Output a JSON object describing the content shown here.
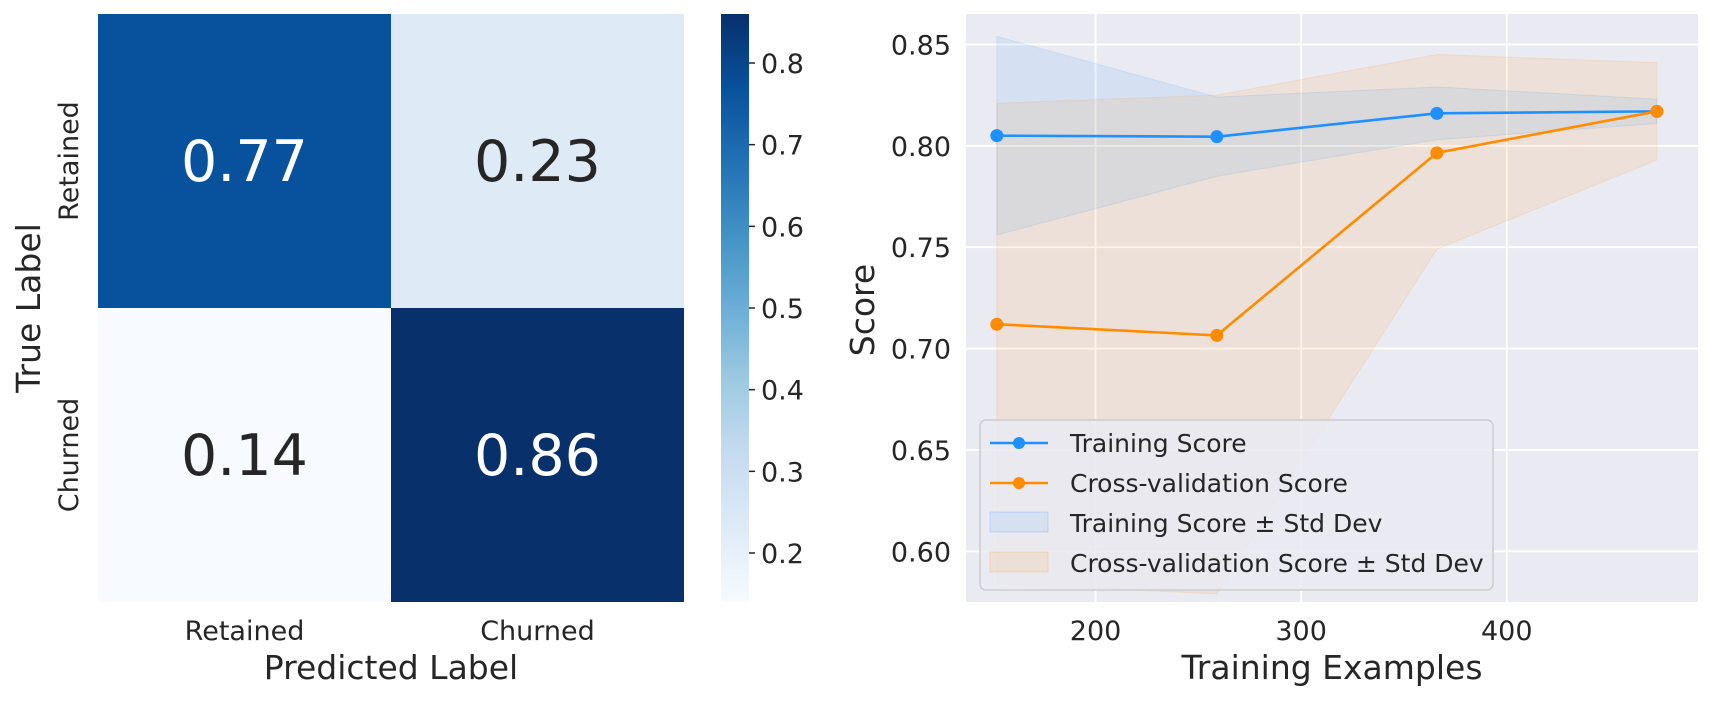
{
  "chart_data": [
    {
      "type": "heatmap",
      "xlabel": "Predicted Label",
      "ylabel": "True Label",
      "x_categories": [
        "Retained",
        "Churned"
      ],
      "y_categories": [
        "Retained",
        "Churned"
      ],
      "values": [
        [
          0.77,
          0.23
        ],
        [
          0.14,
          0.86
        ]
      ],
      "value_labels": [
        [
          "0.77",
          "0.23"
        ],
        [
          "0.14",
          "0.86"
        ]
      ],
      "colormap": "Blues",
      "colorbar": {
        "min": 0.14,
        "max": 0.86,
        "ticks": [
          0.2,
          0.3,
          0.4,
          0.5,
          0.6,
          0.7,
          0.8
        ],
        "tick_labels": [
          "0.2",
          "0.3",
          "0.4",
          "0.5",
          "0.6",
          "0.7",
          "0.8"
        ]
      }
    },
    {
      "type": "line",
      "xlabel": "Training Examples",
      "ylabel": "Score",
      "xlim": [
        137,
        493
      ],
      "ylim": [
        0.575,
        0.865
      ],
      "x_ticks": [
        200,
        300,
        400
      ],
      "x_tick_labels": [
        "200",
        "300",
        "400"
      ],
      "y_ticks": [
        0.6,
        0.65,
        0.7,
        0.75,
        0.8,
        0.85
      ],
      "y_tick_labels": [
        "0.60",
        "0.65",
        "0.70",
        "0.75",
        "0.80",
        "0.85"
      ],
      "grid": true,
      "legend_position": "lower-left",
      "x": [
        152,
        259,
        366,
        473
      ],
      "series": [
        {
          "name": "Training Score",
          "color": "#1E90FF",
          "values": [
            0.805,
            0.8045,
            0.816,
            0.817
          ]
        },
        {
          "name": "Cross-validation Score",
          "color": "#FF8C00",
          "values": [
            0.712,
            0.7065,
            0.7965,
            0.817
          ]
        }
      ],
      "bands": [
        {
          "name": "Training Score ± Std Dev",
          "color": "#1E90FF",
          "lower": [
            0.756,
            0.785,
            0.803,
            0.811
          ],
          "upper": [
            0.854,
            0.824,
            0.829,
            0.823
          ]
        },
        {
          "name": "Cross-validation Score ± Std Dev",
          "color": "#FF8C00",
          "lower": [
            0.584,
            0.579,
            0.749,
            0.793
          ],
          "upper": [
            0.821,
            0.825,
            0.845,
            0.841
          ]
        }
      ]
    }
  ]
}
